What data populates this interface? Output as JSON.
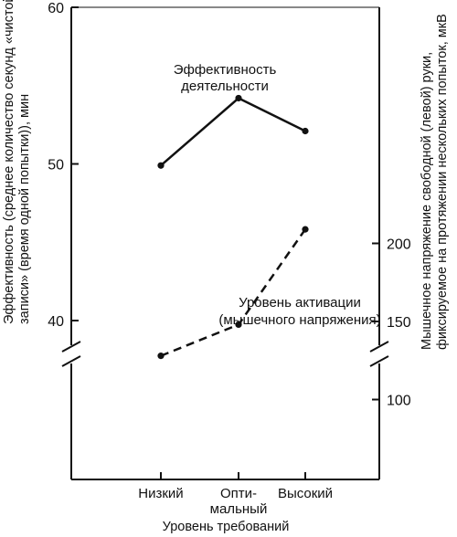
{
  "chart_data": {
    "type": "line",
    "title": "",
    "xlabel": "Уровень требований",
    "categories": [
      "Низкий",
      "Опти-\nмальный",
      "Высокий"
    ],
    "left_axis": {
      "label_lines": [
        "Эффективность (среднее количество секунд «чистой",
        "записи» (время одной попытки)), мин"
      ],
      "ticks": [
        40,
        50,
        60
      ],
      "broken": true
    },
    "right_axis": {
      "label_lines": [
        "Мышечное напряжение свободной (левой) руки,",
        "фиксируемое на протяжении нескольких попыток, мкВ"
      ],
      "ticks": [
        100,
        150,
        200
      ],
      "broken": true
    },
    "series": [
      {
        "name_lines": [
          "Эффективность",
          "деятельности"
        ],
        "axis": "left",
        "style": "solid",
        "values": [
          49.9,
          54.2,
          52.1
        ]
      },
      {
        "name_lines": [
          "Уровень активации",
          "(мышечного напряжения)"
        ],
        "axis": "right",
        "style": "dashed",
        "values": [
          128,
          148,
          209
        ]
      }
    ]
  }
}
